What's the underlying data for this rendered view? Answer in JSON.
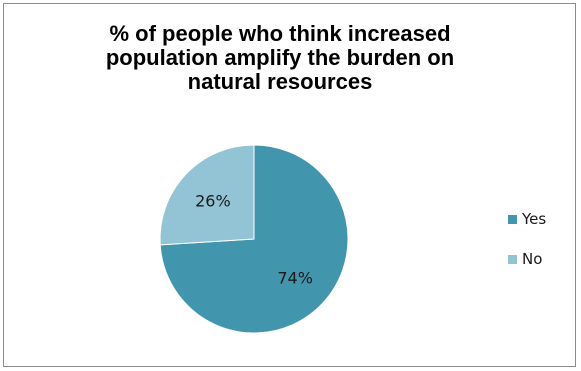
{
  "chart_data": {
    "type": "pie",
    "title": "% of people who think increased population amplify the burden on natural resources",
    "title_lines": [
      "%  of people who think increased",
      "population amplify the burden on",
      "natural resources"
    ],
    "categories": [
      "Yes",
      "No"
    ],
    "values": [
      74,
      26
    ],
    "data_labels": [
      "74%",
      "26%"
    ],
    "colors": [
      "#4196ad",
      "#93c4d6"
    ],
    "legend_position": "right"
  }
}
